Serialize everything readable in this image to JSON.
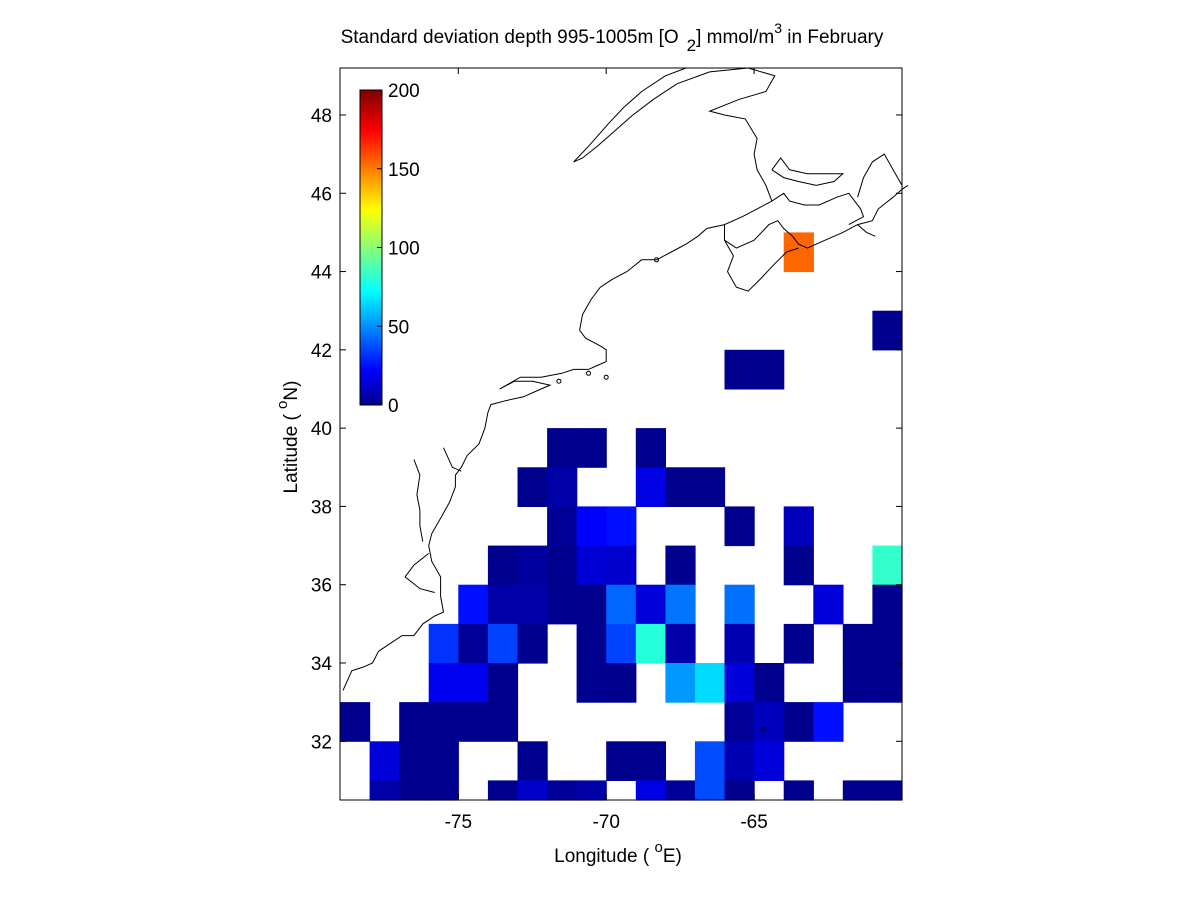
{
  "chart_data": {
    "type": "heatmap",
    "title": {
      "prefix": "Standard deviation depth 995-1005m [O",
      "sub": "2",
      "middle": "] mmol/m",
      "sup": "3",
      "suffix": " in February"
    },
    "xlabel": {
      "prefix": "Longitude ( ",
      "sup": "o",
      "suffix": "E)"
    },
    "ylabel": {
      "prefix": "Latitude ( ",
      "sup": "o",
      "suffix": "N)"
    },
    "xlim": [
      -79,
      -60
    ],
    "ylim": [
      30.5,
      49.2
    ],
    "xticks": [
      -75,
      -70,
      -65
    ],
    "yticks": [
      32,
      34,
      36,
      38,
      40,
      42,
      44,
      46,
      48
    ],
    "colorbar": {
      "min": 0,
      "max": 200,
      "ticks": [
        0,
        50,
        100,
        150,
        200
      ],
      "colormap": "jet",
      "placement": "top-left"
    },
    "cell_size_deg": 1,
    "cells": [
      {
        "lon": -71.5,
        "lat": 39.5,
        "value": 3
      },
      {
        "lon": -70.5,
        "lat": 39.5,
        "value": 3
      },
      {
        "lon": -68.5,
        "lat": 39.5,
        "value": 3
      },
      {
        "lon": -72.5,
        "lat": 38.5,
        "value": 3
      },
      {
        "lon": -71.5,
        "lat": 38.5,
        "value": 8
      },
      {
        "lon": -68.5,
        "lat": 38.5,
        "value": 20
      },
      {
        "lon": -67.5,
        "lat": 38.5,
        "value": 3
      },
      {
        "lon": -66.5,
        "lat": 38.5,
        "value": 3
      },
      {
        "lon": -71.5,
        "lat": 37.5,
        "value": 5
      },
      {
        "lon": -70.5,
        "lat": 37.5,
        "value": 25
      },
      {
        "lon": -69.5,
        "lat": 37.5,
        "value": 28
      },
      {
        "lon": -65.5,
        "lat": 37.5,
        "value": 3
      },
      {
        "lon": -63.5,
        "lat": 37.5,
        "value": 12
      },
      {
        "lon": -73.5,
        "lat": 36.5,
        "value": 3
      },
      {
        "lon": -72.5,
        "lat": 36.5,
        "value": 6
      },
      {
        "lon": -71.5,
        "lat": 36.5,
        "value": 3
      },
      {
        "lon": -70.5,
        "lat": 36.5,
        "value": 17
      },
      {
        "lon": -69.5,
        "lat": 36.5,
        "value": 15
      },
      {
        "lon": -67.5,
        "lat": 36.5,
        "value": 3
      },
      {
        "lon": -63.5,
        "lat": 36.5,
        "value": 3
      },
      {
        "lon": -60.5,
        "lat": 36.5,
        "value": 85
      },
      {
        "lon": -74.5,
        "lat": 35.5,
        "value": 28
      },
      {
        "lon": -73.5,
        "lat": 35.5,
        "value": 8
      },
      {
        "lon": -72.5,
        "lat": 35.5,
        "value": 8
      },
      {
        "lon": -71.5,
        "lat": 35.5,
        "value": 3
      },
      {
        "lon": -70.5,
        "lat": 35.5,
        "value": 3
      },
      {
        "lon": -69.5,
        "lat": 35.5,
        "value": 45
      },
      {
        "lon": -68.5,
        "lat": 35.5,
        "value": 18
      },
      {
        "lon": -67.5,
        "lat": 35.5,
        "value": 48
      },
      {
        "lon": -65.5,
        "lat": 35.5,
        "value": 47
      },
      {
        "lon": -62.5,
        "lat": 35.5,
        "value": 18
      },
      {
        "lon": -60.5,
        "lat": 35.5,
        "value": 3
      },
      {
        "lon": -75.5,
        "lat": 34.5,
        "value": 35
      },
      {
        "lon": -74.5,
        "lat": 34.5,
        "value": 5
      },
      {
        "lon": -73.5,
        "lat": 34.5,
        "value": 38
      },
      {
        "lon": -72.5,
        "lat": 34.5,
        "value": 3
      },
      {
        "lon": -70.5,
        "lat": 34.5,
        "value": 3
      },
      {
        "lon": -69.5,
        "lat": 34.5,
        "value": 38
      },
      {
        "lon": -68.5,
        "lat": 34.5,
        "value": 82
      },
      {
        "lon": -67.5,
        "lat": 34.5,
        "value": 8
      },
      {
        "lon": -65.5,
        "lat": 34.5,
        "value": 10
      },
      {
        "lon": -63.5,
        "lat": 34.5,
        "value": 3
      },
      {
        "lon": -61.5,
        "lat": 34.5,
        "value": 3
      },
      {
        "lon": -60.5,
        "lat": 34.5,
        "value": 3
      },
      {
        "lon": -75.5,
        "lat": 33.5,
        "value": 22
      },
      {
        "lon": -74.5,
        "lat": 33.5,
        "value": 22
      },
      {
        "lon": -73.5,
        "lat": 33.5,
        "value": 3
      },
      {
        "lon": -70.5,
        "lat": 33.5,
        "value": 3
      },
      {
        "lon": -69.5,
        "lat": 33.5,
        "value": 3
      },
      {
        "lon": -67.5,
        "lat": 33.5,
        "value": 55
      },
      {
        "lon": -66.5,
        "lat": 33.5,
        "value": 68
      },
      {
        "lon": -65.5,
        "lat": 33.5,
        "value": 18
      },
      {
        "lon": -64.5,
        "lat": 33.5,
        "value": 3
      },
      {
        "lon": -61.5,
        "lat": 33.5,
        "value": 3
      },
      {
        "lon": -60.5,
        "lat": 33.5,
        "value": 3
      },
      {
        "lon": -78.5,
        "lat": 32.5,
        "value": 3
      },
      {
        "lon": -76.5,
        "lat": 32.5,
        "value": 3
      },
      {
        "lon": -75.5,
        "lat": 32.5,
        "value": 3
      },
      {
        "lon": -74.5,
        "lat": 32.5,
        "value": 3
      },
      {
        "lon": -73.5,
        "lat": 32.5,
        "value": 3
      },
      {
        "lon": -65.5,
        "lat": 32.5,
        "value": 5
      },
      {
        "lon": -64.5,
        "lat": 32.5,
        "value": 12
      },
      {
        "lon": -63.5,
        "lat": 32.5,
        "value": 3
      },
      {
        "lon": -62.5,
        "lat": 32.5,
        "value": 28
      },
      {
        "lon": -77.5,
        "lat": 31.5,
        "value": 18
      },
      {
        "lon": -76.5,
        "lat": 31.5,
        "value": 3
      },
      {
        "lon": -75.5,
        "lat": 31.5,
        "value": 3
      },
      {
        "lon": -72.5,
        "lat": 31.5,
        "value": 3
      },
      {
        "lon": -69.5,
        "lat": 31.5,
        "value": 3
      },
      {
        "lon": -68.5,
        "lat": 31.5,
        "value": 3
      },
      {
        "lon": -66.5,
        "lat": 31.5,
        "value": 40
      },
      {
        "lon": -65.5,
        "lat": 31.5,
        "value": 10
      },
      {
        "lon": -64.5,
        "lat": 31.5,
        "value": 18
      },
      {
        "lon": -77.5,
        "lat": 30.5,
        "value": 8
      },
      {
        "lon": -76.5,
        "lat": 30.5,
        "value": 3
      },
      {
        "lon": -75.5,
        "lat": 30.5,
        "value": 3
      },
      {
        "lon": -73.5,
        "lat": 30.5,
        "value": 3
      },
      {
        "lon": -72.5,
        "lat": 30.5,
        "value": 15
      },
      {
        "lon": -71.5,
        "lat": 30.5,
        "value": 5
      },
      {
        "lon": -70.5,
        "lat": 30.5,
        "value": 8
      },
      {
        "lon": -68.5,
        "lat": 30.5,
        "value": 20
      },
      {
        "lon": -67.5,
        "lat": 30.5,
        "value": 5
      },
      {
        "lon": -66.5,
        "lat": 30.5,
        "value": 40
      },
      {
        "lon": -65.5,
        "lat": 30.5,
        "value": 3
      },
      {
        "lon": -63.5,
        "lat": 30.5,
        "value": 3
      },
      {
        "lon": -61.5,
        "lat": 30.5,
        "value": 3
      },
      {
        "lon": -60.5,
        "lat": 30.5,
        "value": 3
      },
      {
        "lon": -65.5,
        "lat": 41.5,
        "value": 3
      },
      {
        "lon": -64.5,
        "lat": 41.5,
        "value": 3
      },
      {
        "lon": -60.5,
        "lat": 42.5,
        "value": 3
      },
      {
        "lon": -63.5,
        "lat": 44.5,
        "value": 155
      }
    ],
    "coastline": [
      [
        [
          -78.9,
          33.3
        ],
        [
          -78.6,
          33.8
        ],
        [
          -78.2,
          33.9
        ],
        [
          -77.9,
          34.0
        ],
        [
          -77.7,
          34.3
        ],
        [
          -77.3,
          34.5
        ],
        [
          -76.9,
          34.7
        ],
        [
          -76.5,
          34.7
        ],
        [
          -76.2,
          35.0
        ],
        [
          -75.8,
          35.2
        ],
        [
          -75.5,
          35.3
        ],
        [
          -75.6,
          35.7
        ],
        [
          -75.6,
          36.2
        ],
        [
          -75.9,
          36.6
        ],
        [
          -76.0,
          37.0
        ],
        [
          -75.9,
          37.3
        ],
        [
          -75.6,
          37.7
        ],
        [
          -75.3,
          38.1
        ],
        [
          -75.1,
          38.5
        ],
        [
          -75.1,
          38.8
        ],
        [
          -74.9,
          39.0
        ],
        [
          -74.7,
          39.3
        ],
        [
          -74.3,
          39.6
        ],
        [
          -74.1,
          40.0
        ],
        [
          -74.0,
          40.4
        ],
        [
          -73.9,
          40.6
        ],
        [
          -73.4,
          40.7
        ],
        [
          -72.8,
          40.8
        ],
        [
          -72.2,
          41.0
        ],
        [
          -71.9,
          41.1
        ],
        [
          -72.5,
          41.2
        ],
        [
          -73.1,
          41.2
        ],
        [
          -73.6,
          41.0
        ],
        [
          -72.9,
          41.3
        ],
        [
          -72.2,
          41.3
        ],
        [
          -71.5,
          41.4
        ],
        [
          -71.1,
          41.5
        ],
        [
          -70.6,
          41.5
        ],
        [
          -70.3,
          41.6
        ],
        [
          -70.0,
          41.7
        ],
        [
          -70.0,
          42.0
        ],
        [
          -70.2,
          42.1
        ],
        [
          -70.7,
          42.3
        ],
        [
          -70.9,
          42.5
        ],
        [
          -70.8,
          42.9
        ],
        [
          -70.5,
          43.3
        ],
        [
          -70.2,
          43.6
        ],
        [
          -69.8,
          43.8
        ],
        [
          -69.3,
          44.0
        ],
        [
          -68.8,
          44.3
        ],
        [
          -68.3,
          44.3
        ],
        [
          -67.8,
          44.5
        ],
        [
          -67.3,
          44.7
        ],
        [
          -66.9,
          44.9
        ],
        [
          -66.6,
          45.1
        ],
        [
          -66.0,
          45.2
        ],
        [
          -65.4,
          45.4
        ],
        [
          -64.9,
          45.6
        ],
        [
          -64.4,
          45.8
        ],
        [
          -64.0,
          46.0
        ],
        [
          -63.8,
          45.8
        ],
        [
          -63.3,
          45.7
        ],
        [
          -62.8,
          45.7
        ],
        [
          -62.2,
          45.9
        ],
        [
          -61.8,
          46.0
        ],
        [
          -61.4,
          45.6
        ],
        [
          -61.3,
          45.4
        ],
        [
          -61.8,
          45.2
        ]
      ],
      [
        [
          -64.4,
          45.8
        ],
        [
          -64.6,
          46.2
        ],
        [
          -64.9,
          46.6
        ],
        [
          -65.0,
          47.0
        ],
        [
          -64.9,
          47.4
        ],
        [
          -65.3,
          47.9
        ],
        [
          -66.0,
          48.0
        ],
        [
          -66.5,
          48.1
        ],
        [
          -65.5,
          48.4
        ],
        [
          -64.6,
          48.6
        ],
        [
          -64.3,
          49.0
        ],
        [
          -65.2,
          49.2
        ],
        [
          -66.5,
          49.1
        ],
        [
          -67.6,
          48.8
        ],
        [
          -68.4,
          48.4
        ],
        [
          -69.1,
          48.0
        ],
        [
          -69.7,
          47.6
        ],
        [
          -70.3,
          47.2
        ],
        [
          -70.8,
          46.9
        ],
        [
          -71.1,
          46.8
        ],
        [
          -70.6,
          47.2
        ],
        [
          -69.9,
          47.8
        ],
        [
          -69.4,
          48.2
        ],
        [
          -68.8,
          48.6
        ],
        [
          -68.0,
          49.0
        ],
        [
          -67.3,
          49.2
        ]
      ],
      [
        [
          -66.0,
          45.2
        ],
        [
          -66.0,
          44.8
        ],
        [
          -65.6,
          44.6
        ],
        [
          -65.0,
          44.8
        ],
        [
          -64.5,
          45.2
        ],
        [
          -64.2,
          45.3
        ],
        [
          -64.0,
          45.1
        ],
        [
          -63.7,
          44.9
        ],
        [
          -63.5,
          44.7
        ],
        [
          -63.2,
          44.6
        ],
        [
          -62.6,
          44.8
        ],
        [
          -62.0,
          45.0
        ],
        [
          -61.5,
          45.2
        ],
        [
          -61.0,
          45.3
        ],
        [
          -60.8,
          45.6
        ],
        [
          -60.3,
          45.9
        ],
        [
          -60.0,
          46.1
        ],
        [
          -59.8,
          46.2
        ]
      ],
      [
        [
          -66.0,
          44.8
        ],
        [
          -65.7,
          44.4
        ],
        [
          -65.9,
          44.0
        ],
        [
          -65.6,
          43.6
        ],
        [
          -65.2,
          43.5
        ],
        [
          -64.8,
          43.8
        ],
        [
          -64.3,
          44.2
        ],
        [
          -63.9,
          44.5
        ],
        [
          -63.5,
          44.6
        ]
      ],
      [
        [
          -61.5,
          45.9
        ],
        [
          -61.3,
          46.4
        ],
        [
          -61.0,
          46.8
        ],
        [
          -60.6,
          47.0
        ],
        [
          -60.3,
          46.6
        ],
        [
          -60.0,
          46.2
        ]
      ],
      [
        [
          -64.4,
          46.6
        ],
        [
          -64.0,
          46.4
        ],
        [
          -63.5,
          46.3
        ],
        [
          -62.9,
          46.2
        ],
        [
          -62.3,
          46.3
        ],
        [
          -62.0,
          46.5
        ],
        [
          -62.5,
          46.5
        ],
        [
          -63.2,
          46.5
        ],
        [
          -63.8,
          46.6
        ],
        [
          -64.1,
          46.9
        ],
        [
          -64.4,
          46.6
        ]
      ],
      [
        [
          -76.5,
          39.2
        ],
        [
          -76.3,
          38.8
        ],
        [
          -76.4,
          38.3
        ],
        [
          -76.3,
          37.9
        ],
        [
          -76.3,
          37.5
        ],
        [
          -76.2,
          37.1
        ]
      ],
      [
        [
          -76.0,
          36.8
        ],
        [
          -76.5,
          36.5
        ],
        [
          -76.8,
          36.2
        ],
        [
          -76.3,
          35.9
        ],
        [
          -75.8,
          35.8
        ]
      ],
      [
        [
          -75.5,
          39.5
        ],
        [
          -75.2,
          39.0
        ],
        [
          -74.9,
          38.9
        ]
      ],
      [
        [
          -61.5,
          45.2
        ],
        [
          -61.2,
          45.0
        ],
        [
          -60.9,
          44.9
        ]
      ]
    ],
    "islands": [
      [
        -70.6,
        41.4
      ],
      [
        -70.0,
        41.3
      ],
      [
        -71.6,
        41.2
      ],
      [
        -64.7,
        32.3
      ],
      [
        -68.3,
        44.3
      ]
    ]
  }
}
